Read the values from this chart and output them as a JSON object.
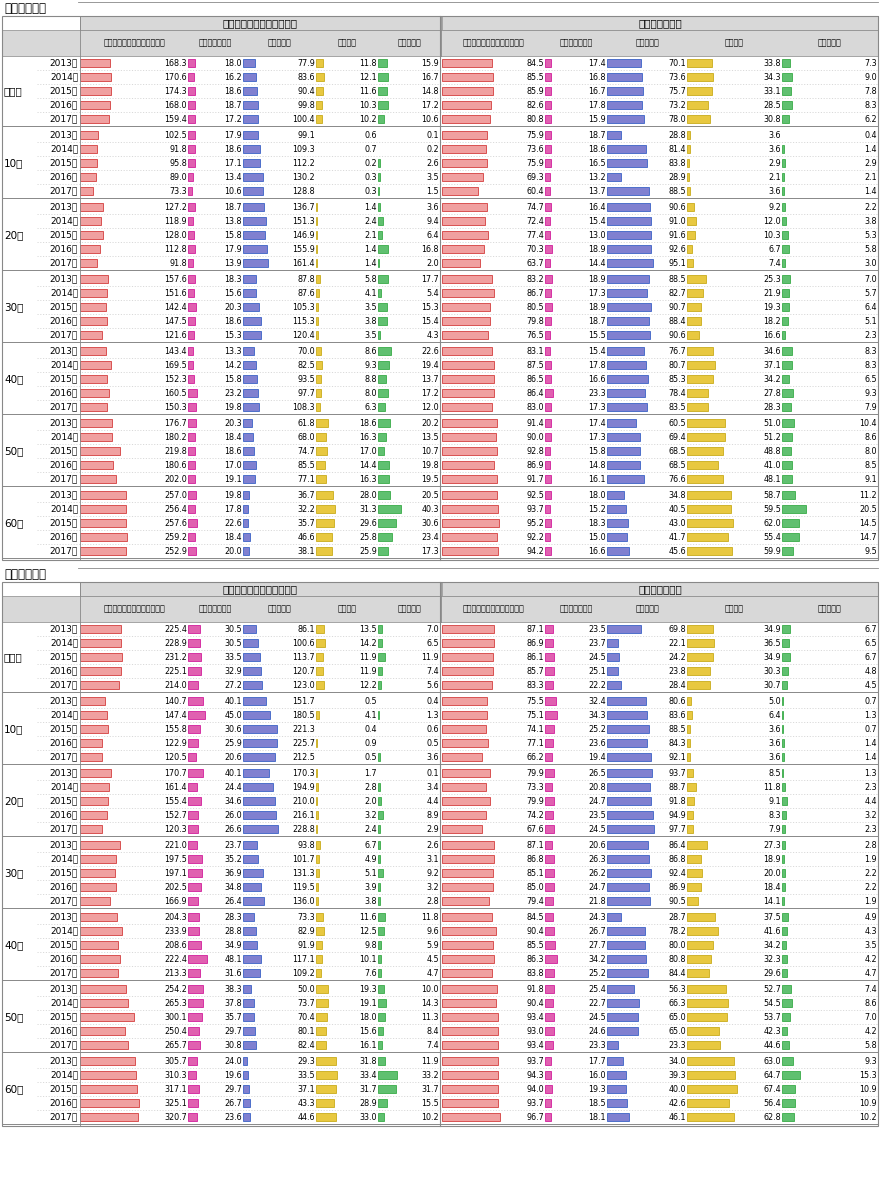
{
  "title_weekday": "「平日１日」",
  "title_holiday": "「休日１日」",
  "header_time": "平均利用時間（単位：分）",
  "header_rate": "行為者率（％）",
  "col_tv_rt": "テレビ（リアルタイム）視聴",
  "col_tv_rec": "テレビ（録画）",
  "col_net": "ネット利用",
  "col_news": "新聞閲読",
  "col_radio": "ラジオ聴取",
  "age_groups": [
    "全年代",
    "10代",
    "20代",
    "30代",
    "40代",
    "50代",
    "60代"
  ],
  "years": [
    "2013年",
    "2014年",
    "2015年",
    "2016年",
    "2017年"
  ],
  "weekday": {
    "time": {
      "全年代": {
        "tv_rt": [
          168.3,
          170.6,
          174.3,
          168.0,
          159.4
        ],
        "tv_rec": [
          18.0,
          16.2,
          18.6,
          18.7,
          17.2
        ],
        "net": [
          77.9,
          83.6,
          90.4,
          99.8,
          100.4
        ],
        "news": [
          11.8,
          12.1,
          11.6,
          10.3,
          10.2
        ],
        "radio": [
          15.9,
          16.7,
          14.8,
          17.2,
          10.6
        ]
      },
      "10代": {
        "tv_rt": [
          102.5,
          91.8,
          95.8,
          89.0,
          73.3
        ],
        "tv_rec": [
          17.9,
          18.6,
          17.1,
          13.4,
          10.6
        ],
        "net": [
          99.1,
          109.3,
          112.2,
          130.2,
          128.8
        ],
        "news": [
          0.6,
          0.7,
          0.2,
          0.3,
          0.3
        ],
        "radio": [
          0.1,
          0.2,
          2.6,
          3.5,
          1.5
        ]
      },
      "20代": {
        "tv_rt": [
          127.2,
          118.9,
          128.0,
          112.8,
          91.8
        ],
        "tv_rec": [
          18.7,
          13.8,
          15.8,
          17.9,
          13.9
        ],
        "net": [
          136.7,
          151.3,
          146.9,
          155.9,
          161.4
        ],
        "news": [
          1.4,
          2.4,
          2.1,
          1.4,
          1.4
        ],
        "radio": [
          3.6,
          9.4,
          6.4,
          16.8,
          2.0
        ]
      },
      "30代": {
        "tv_rt": [
          157.6,
          151.6,
          142.4,
          147.5,
          121.6
        ],
        "tv_rec": [
          18.3,
          15.6,
          20.3,
          18.6,
          15.3
        ],
        "net": [
          87.8,
          87.6,
          105.3,
          115.3,
          120.4
        ],
        "news": [
          5.8,
          4.1,
          3.5,
          3.8,
          3.5
        ],
        "radio": [
          17.7,
          5.4,
          15.3,
          15.4,
          4.3
        ]
      },
      "40代": {
        "tv_rt": [
          143.4,
          169.5,
          152.3,
          160.5,
          150.3
        ],
        "tv_rec": [
          13.3,
          14.2,
          15.8,
          23.2,
          19.8
        ],
        "net": [
          70.0,
          82.5,
          93.5,
          97.7,
          108.3
        ],
        "news": [
          8.6,
          9.3,
          8.8,
          8.0,
          6.3
        ],
        "radio": [
          22.6,
          19.4,
          13.7,
          17.2,
          12.0
        ]
      },
      "50代": {
        "tv_rt": [
          176.7,
          180.2,
          219.8,
          180.6,
          202.0
        ],
        "tv_rec": [
          20.3,
          18.4,
          18.6,
          17.0,
          19.1
        ],
        "net": [
          61.8,
          68.0,
          74.7,
          85.5,
          77.1
        ],
        "news": [
          18.6,
          16.3,
          17.0,
          14.4,
          16.3
        ],
        "radio": [
          20.2,
          13.5,
          10.7,
          19.8,
          19.5
        ]
      },
      "60代": {
        "tv_rt": [
          257.0,
          256.4,
          257.6,
          259.2,
          252.9
        ],
        "tv_rec": [
          19.8,
          17.8,
          22.6,
          18.4,
          20.0
        ],
        "net": [
          36.7,
          32.2,
          35.7,
          46.6,
          38.1
        ],
        "news": [
          28.0,
          31.3,
          29.6,
          25.8,
          25.9
        ],
        "radio": [
          20.5,
          40.3,
          30.6,
          23.4,
          17.3
        ]
      }
    },
    "rate": {
      "全年代": {
        "tv_rt": [
          84.5,
          85.5,
          85.9,
          82.6,
          80.8
        ],
        "tv_rec": [
          17.4,
          16.8,
          16.7,
          17.8,
          15.9
        ],
        "net": [
          70.1,
          73.6,
          75.7,
          73.2,
          78.0
        ],
        "news": [
          33.8,
          34.3,
          33.1,
          28.5,
          30.8
        ],
        "radio": [
          7.3,
          9.0,
          7.8,
          8.3,
          6.2
        ]
      },
      "10代": {
        "tv_rt": [
          75.9,
          73.6,
          75.9,
          69.3,
          60.4
        ],
        "tv_rec": [
          18.7,
          18.6,
          16.5,
          13.2,
          13.7
        ],
        "net": [
          28.8,
          81.4,
          83.8,
          28.9,
          88.5
        ],
        "news": [
          3.6,
          3.6,
          2.9,
          2.1,
          3.6
        ],
        "radio": [
          0.4,
          1.4,
          2.9,
          2.1,
          1.4
        ]
      },
      "20代": {
        "tv_rt": [
          74.7,
          72.4,
          77.4,
          70.3,
          63.7
        ],
        "tv_rec": [
          16.4,
          15.4,
          13.0,
          18.9,
          14.4
        ],
        "net": [
          90.6,
          91.0,
          91.6,
          92.6,
          95.1
        ],
        "news": [
          9.2,
          12.0,
          10.3,
          6.7,
          7.4
        ],
        "radio": [
          2.2,
          3.8,
          5.3,
          5.8,
          3.0
        ]
      },
      "30代": {
        "tv_rt": [
          83.2,
          86.7,
          80.5,
          79.8,
          76.5
        ],
        "tv_rec": [
          18.9,
          17.3,
          18.9,
          18.7,
          15.5
        ],
        "net": [
          88.5,
          82.7,
          90.7,
          88.4,
          90.6
        ],
        "news": [
          25.3,
          21.9,
          19.3,
          18.2,
          16.6
        ],
        "radio": [
          7.0,
          5.7,
          6.4,
          5.1,
          2.3
        ]
      },
      "40代": {
        "tv_rt": [
          83.1,
          87.5,
          86.5,
          86.4,
          83.0
        ],
        "tv_rec": [
          15.4,
          17.8,
          16.6,
          23.3,
          17.3
        ],
        "net": [
          76.7,
          80.7,
          85.3,
          78.4,
          83.5
        ],
        "news": [
          34.6,
          37.1,
          34.2,
          27.8,
          28.3
        ],
        "radio": [
          8.3,
          8.3,
          6.5,
          9.3,
          7.9
        ]
      },
      "50代": {
        "tv_rt": [
          91.4,
          90.0,
          92.8,
          86.9,
          91.7
        ],
        "tv_rec": [
          17.4,
          17.3,
          15.8,
          14.8,
          16.1
        ],
        "net": [
          60.5,
          69.4,
          68.5,
          68.5,
          76.6
        ],
        "news": [
          51.0,
          51.2,
          48.8,
          41.0,
          48.1
        ],
        "radio": [
          10.4,
          8.6,
          8.0,
          8.5,
          9.1
        ]
      },
      "60代": {
        "tv_rt": [
          92.5,
          93.7,
          95.2,
          92.2,
          94.2
        ],
        "tv_rec": [
          18.0,
          15.2,
          18.3,
          15.0,
          16.6
        ],
        "net": [
          34.8,
          40.5,
          43.0,
          41.7,
          45.6
        ],
        "news": [
          58.7,
          59.5,
          62.0,
          55.4,
          59.9
        ],
        "radio": [
          11.2,
          20.5,
          14.5,
          14.7,
          9.5
        ]
      }
    }
  },
  "holiday": {
    "time": {
      "全年代": {
        "tv_rt": [
          225.4,
          228.9,
          231.2,
          225.1,
          214.0
        ],
        "tv_rec": [
          30.5,
          30.5,
          33.5,
          32.9,
          27.2
        ],
        "net": [
          86.1,
          100.6,
          113.7,
          120.7,
          123.0
        ],
        "news": [
          13.5,
          14.2,
          11.9,
          11.9,
          12.2
        ],
        "radio": [
          7.0,
          6.5,
          11.9,
          7.4,
          5.6
        ]
      },
      "10代": {
        "tv_rt": [
          140.7,
          147.4,
          155.8,
          122.9,
          120.5
        ],
        "tv_rec": [
          40.1,
          45.0,
          30.6,
          25.9,
          20.6
        ],
        "net": [
          151.7,
          180.5,
          221.3,
          225.7,
          212.5
        ],
        "news": [
          0.5,
          4.1,
          0.4,
          0.9,
          0.5
        ],
        "radio": [
          0.4,
          1.3,
          0.6,
          0.5,
          3.6
        ]
      },
      "20代": {
        "tv_rt": [
          170.7,
          161.4,
          155.4,
          152.7,
          120.3
        ],
        "tv_rec": [
          40.1,
          24.4,
          34.6,
          26.0,
          26.6
        ],
        "net": [
          170.3,
          194.9,
          210.0,
          216.1,
          228.8
        ],
        "news": [
          1.7,
          2.8,
          2.0,
          3.2,
          2.4
        ],
        "radio": [
          0.1,
          3.4,
          4.4,
          8.9,
          2.9
        ]
      },
      "30代": {
        "tv_rt": [
          221.0,
          197.5,
          197.1,
          202.5,
          166.9
        ],
        "tv_rec": [
          23.7,
          35.2,
          36.9,
          34.8,
          26.4
        ],
        "net": [
          93.8,
          101.7,
          131.3,
          119.5,
          136.0
        ],
        "news": [
          6.7,
          4.9,
          5.1,
          3.9,
          3.8
        ],
        "radio": [
          2.6,
          3.1,
          9.2,
          3.2,
          2.8
        ]
      },
      "40代": {
        "tv_rt": [
          204.3,
          233.9,
          208.6,
          222.4,
          213.3
        ],
        "tv_rec": [
          28.3,
          28.8,
          34.9,
          48.1,
          31.6
        ],
        "net": [
          73.3,
          82.9,
          91.9,
          117.1,
          109.2
        ],
        "news": [
          11.6,
          12.5,
          9.8,
          10.1,
          7.6
        ],
        "radio": [
          11.8,
          9.6,
          5.9,
          4.5,
          4.7
        ]
      },
      "50代": {
        "tv_rt": [
          254.2,
          265.3,
          300.1,
          250.4,
          265.7
        ],
        "tv_rec": [
          38.3,
          37.8,
          35.7,
          29.7,
          30.8
        ],
        "net": [
          50.0,
          73.7,
          70.4,
          80.1,
          82.4
        ],
        "news": [
          19.3,
          19.1,
          18.0,
          15.6,
          16.1
        ],
        "radio": [
          10.0,
          14.3,
          11.3,
          8.4,
          7.4
        ]
      },
      "60代": {
        "tv_rt": [
          305.7,
          310.3,
          317.1,
          325.1,
          320.7
        ],
        "tv_rec": [
          24.0,
          19.6,
          29.7,
          26.7,
          23.6
        ],
        "net": [
          29.3,
          33.5,
          37.1,
          43.3,
          44.6
        ],
        "news": [
          31.8,
          33.4,
          31.7,
          28.9,
          33.0
        ],
        "radio": [
          11.9,
          33.2,
          31.7,
          15.5,
          10.2
        ]
      }
    },
    "rate": {
      "全年代": {
        "tv_rt": [
          87.1,
          86.9,
          86.1,
          85.7,
          83.3
        ],
        "tv_rec": [
          23.5,
          23.7,
          24.5,
          25.1,
          22.2
        ],
        "net": [
          69.8,
          22.1,
          24.2,
          23.8,
          28.4
        ],
        "news": [
          34.9,
          36.5,
          34.9,
          30.3,
          30.7
        ],
        "radio": [
          6.7,
          6.5,
          6.7,
          4.8,
          4.5
        ]
      },
      "10代": {
        "tv_rt": [
          75.5,
          75.1,
          74.1,
          77.1,
          66.2
        ],
        "tv_rec": [
          32.4,
          34.3,
          25.2,
          23.6,
          19.4
        ],
        "net": [
          80.6,
          83.6,
          88.5,
          84.3,
          92.1
        ],
        "news": [
          5.0,
          6.4,
          3.6,
          3.6,
          3.6
        ],
        "radio": [
          0.7,
          1.3,
          0.7,
          1.4,
          1.4
        ]
      },
      "20代": {
        "tv_rt": [
          79.9,
          73.3,
          79.9,
          74.2,
          67.6
        ],
        "tv_rec": [
          26.5,
          20.8,
          24.7,
          23.5,
          24.5
        ],
        "net": [
          93.7,
          88.7,
          91.8,
          94.9,
          97.7
        ],
        "news": [
          8.5,
          11.8,
          9.1,
          8.3,
          7.9
        ],
        "radio": [
          1.3,
          2.3,
          4.4,
          3.2,
          2.3
        ]
      },
      "30代": {
        "tv_rt": [
          87.1,
          86.8,
          85.1,
          85.0,
          79.4
        ],
        "tv_rec": [
          20.6,
          26.3,
          26.2,
          24.7,
          21.8
        ],
        "net": [
          86.4,
          86.8,
          92.4,
          86.9,
          90.5
        ],
        "news": [
          27.3,
          18.9,
          20.0,
          18.4,
          14.1
        ],
        "radio": [
          2.8,
          1.9,
          2.2,
          2.2,
          1.9
        ]
      },
      "40代": {
        "tv_rt": [
          84.5,
          90.4,
          85.5,
          86.3,
          83.8
        ],
        "tv_rec": [
          24.3,
          26.7,
          27.7,
          34.2,
          25.2
        ],
        "net": [
          28.7,
          78.2,
          80.0,
          80.8,
          84.4
        ],
        "news": [
          37.5,
          41.6,
          34.2,
          32.3,
          29.6
        ],
        "radio": [
          4.9,
          4.3,
          3.5,
          4.2,
          4.7
        ]
      },
      "50代": {
        "tv_rt": [
          91.8,
          90.4,
          93.4,
          93.0,
          93.4
        ],
        "tv_rec": [
          25.4,
          22.7,
          24.5,
          24.6,
          23.3
        ],
        "net": [
          56.3,
          66.3,
          65.0,
          65.0,
          23.3
        ],
        "news": [
          52.7,
          54.5,
          53.7,
          42.3,
          44.6
        ],
        "radio": [
          7.4,
          8.6,
          7.0,
          4.2,
          5.8
        ]
      },
      "60代": {
        "tv_rt": [
          93.7,
          94.3,
          94.0,
          93.7,
          96.7
        ],
        "tv_rec": [
          17.7,
          16.0,
          19.3,
          18.5,
          18.1
        ],
        "net": [
          34.0,
          39.3,
          40.0,
          42.6,
          46.1
        ],
        "news": [
          63.0,
          64.7,
          67.4,
          56.4,
          62.8
        ],
        "radio": [
          9.3,
          15.3,
          10.9,
          10.9,
          10.2
        ]
      }
    }
  }
}
